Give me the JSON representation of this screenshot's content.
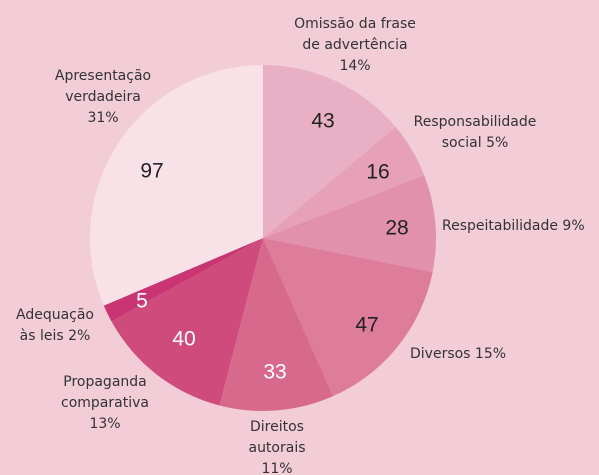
{
  "chart_data": {
    "type": "pie",
    "categories": [
      [
        "Omissão da frase",
        "de advertência",
        "14%"
      ],
      [
        "Responsabilidade",
        "social 5%"
      ],
      [
        "Respeitabilidade 9%"
      ],
      [
        "Diversos 15%"
      ],
      [
        "Direitos",
        "autorais",
        "11%"
      ],
      [
        "Propaganda",
        "comparativa",
        "13%"
      ],
      [
        "Adequação",
        "às leis 2%"
      ],
      [
        "Apresentação",
        "verdadeira",
        "31%"
      ]
    ],
    "values": [
      43,
      16,
      28,
      47,
      33,
      40,
      5,
      97
    ],
    "colors": [
      "#e9afc4",
      "#e6a1b9",
      "#e291ad",
      "#dd7c9b",
      "#d7698d",
      "#cf4b7b",
      "#c83572",
      "#f8e2e8"
    ]
  }
}
